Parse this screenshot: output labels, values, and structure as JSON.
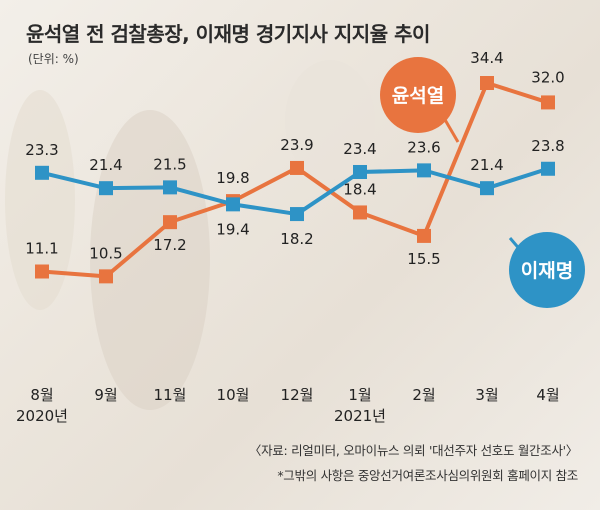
{
  "title": "윤석열 전 검찰총장, 이재명 경기지사 지지율 추이",
  "unit": "(단위: %)",
  "footer": {
    "source": "〈자료: 리얼미터, 오마이뉴스 의뢰 '대선주자 선호도 월간조사'〉",
    "note": "*그밖의 사항은 중앙선거여론조사심의위원회 홈페이지 참조"
  },
  "chart_data": {
    "type": "line",
    "title": "윤석열 전 검찰총장, 이재명 경기지사 지지율 추이",
    "unit": "(단위: %)",
    "categories": [
      "8월",
      "9월",
      "11월",
      "10월",
      "12월",
      "1월",
      "2월",
      "3월",
      "4월"
    ],
    "year_labels": [
      {
        "index": 0,
        "label": "2020년"
      },
      {
        "index": 5,
        "label": "2021년"
      }
    ],
    "series": [
      {
        "name": "윤석열",
        "color": "#e8743f",
        "marker": "square",
        "values": [
          11.1,
          10.5,
          17.2,
          19.8,
          23.9,
          18.4,
          15.5,
          34.4,
          32.0
        ],
        "labels": [
          "11.1",
          "10.5",
          "17.2",
          "19.8",
          "23.9",
          "18.4",
          "15.5",
          "34.4",
          "32.0"
        ]
      },
      {
        "name": "이재명",
        "color": "#2e93c6",
        "marker": "square",
        "values": [
          23.3,
          21.4,
          21.5,
          19.4,
          18.2,
          23.4,
          23.6,
          21.4,
          23.8
        ],
        "labels": [
          "23.3",
          "21.4",
          "21.5",
          "19.4",
          "18.2",
          "23.4",
          "23.6",
          "21.4",
          "23.8"
        ]
      }
    ],
    "ylim": [
      8,
      36
    ],
    "grid": false,
    "legend": "callout bubbles"
  }
}
